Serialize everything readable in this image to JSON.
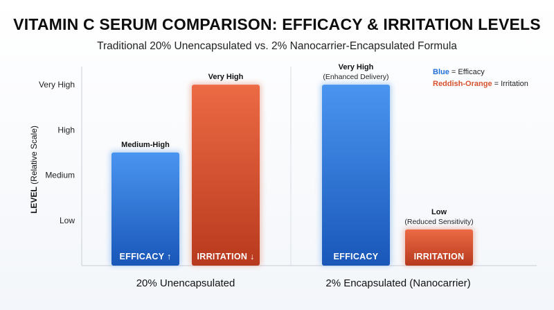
{
  "chart_data": {
    "type": "bar",
    "title": "VITAMIN C SERUM COMPARISON: EFFICACY & IRRITATION LEVELS",
    "subtitle": "Traditional 20% Unencapsulated vs. 2% Nanocarrier-Encapsulated Formula",
    "ylabel_bold": "LEVEL",
    "ylabel_rest": " (Relative Scale)",
    "ylim": [
      0,
      4.4
    ],
    "ytick_values": [
      1,
      2,
      3,
      4
    ],
    "ytick_labels": [
      "Low",
      "Medium",
      "High",
      "Very High"
    ],
    "groups": [
      {
        "name": "20% Unencapsulated",
        "bars": [
          {
            "metric": "efficacy",
            "value": 2.5,
            "label": "Medium-High",
            "sublabel": "",
            "inbar": "EFFICACY ↑",
            "color": "#2f7fe0"
          },
          {
            "metric": "irritation",
            "value": 4.0,
            "label": "Very High",
            "sublabel": "",
            "inbar": "IRRITATION ↓",
            "color": "#d8522e"
          }
        ]
      },
      {
        "name": "2% Encapsulated (Nanocarrier)",
        "bars": [
          {
            "metric": "efficacy",
            "value": 4.0,
            "label": "Very High",
            "sublabel": "(Enhanced Delivery)",
            "inbar": "EFFICACY",
            "color": "#2f7fe0"
          },
          {
            "metric": "irritation",
            "value": 0.8,
            "label": "Low",
            "sublabel": "(Reduced Sensitivity)",
            "inbar": "IRRITATION",
            "color": "#d8522e"
          }
        ]
      }
    ],
    "legend": {
      "placement": "top-right",
      "items": [
        {
          "key": "Blue",
          "text": " = Efficacy",
          "color": "#1f6fd6"
        },
        {
          "key": "Reddish-Orange",
          "text": " = Irritation",
          "color": "#d8522e"
        }
      ]
    },
    "grid": false
  }
}
